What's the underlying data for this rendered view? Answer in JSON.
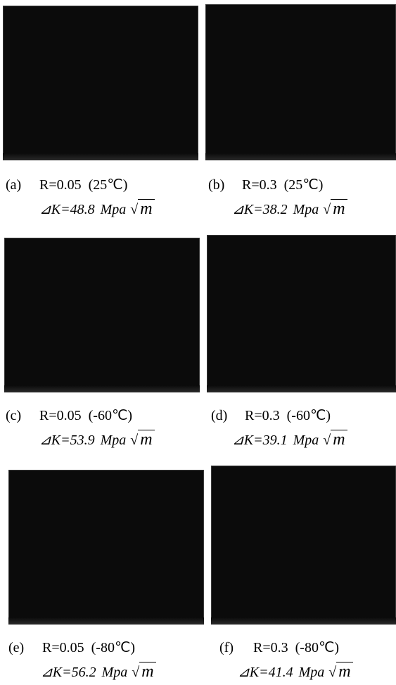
{
  "panels": [
    {
      "label": "(a)",
      "condition": "R=0.05  (25℃)",
      "delta_k": "⊿K=48.8",
      "unit": "Mpa",
      "root": "√",
      "root_arg": "m"
    },
    {
      "label": "(b)",
      "condition": "R=0.3  (25℃)",
      "delta_k": "⊿K=38.2",
      "unit": "Mpa",
      "root": "√",
      "root_arg": "m"
    },
    {
      "label": "(c)",
      "condition": "R=0.05  (-60℃)",
      "delta_k": "⊿K=53.9",
      "unit": "Mpa",
      "root": "√",
      "root_arg": "m"
    },
    {
      "label": "(d)",
      "condition": "R=0.3  (-60℃)",
      "delta_k": "⊿K=39.1",
      "unit": "Mpa",
      "root": "√",
      "root_arg": "m"
    },
    {
      "label": "(e)",
      "condition": "R=0.05  (-80℃)",
      "delta_k": "⊿K=56.2",
      "unit": "Mpa",
      "root": "√",
      "root_arg": "m"
    },
    {
      "label": "(f)",
      "condition": "R=0.3  (-80℃)",
      "delta_k": "⊿K=41.4",
      "unit": "Mpa",
      "root": "√",
      "root_arg": "m"
    }
  ]
}
